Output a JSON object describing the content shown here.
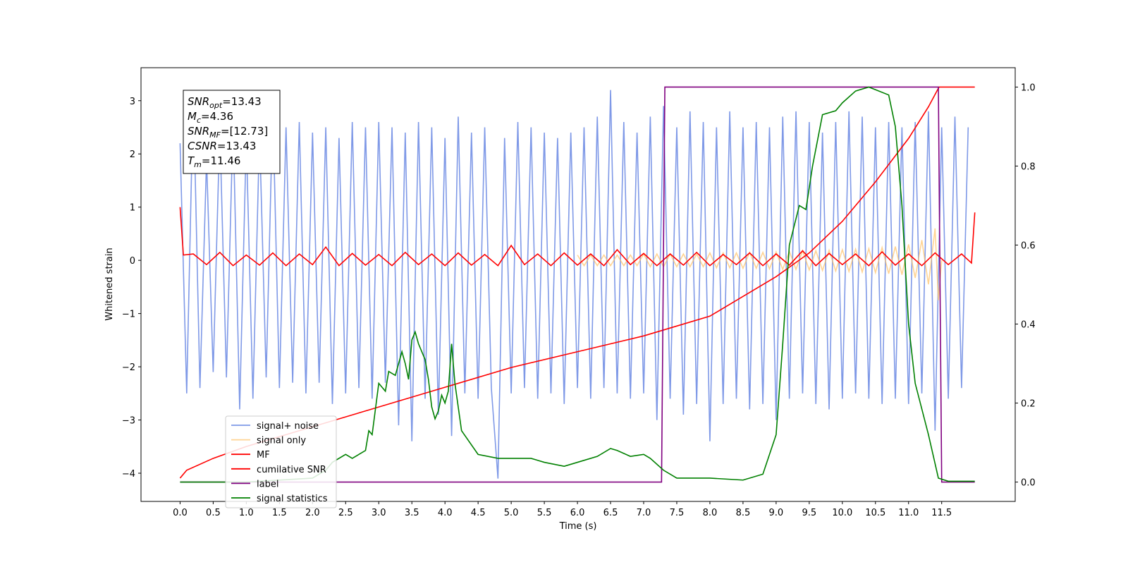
{
  "chart_data": {
    "type": "line",
    "xlabel": "Time (s)",
    "ylabel": "Whitened strain",
    "xlim": [
      -0.59,
      12.61
    ],
    "ylim": [
      -4.53,
      3.62
    ],
    "y2lim": [
      -0.049,
      1.049
    ],
    "xticks": [
      {
        "value": 0,
        "label": "0.0"
      },
      0.5,
      {
        "value": 1,
        "label": "1.0"
      },
      1.5,
      {
        "value": 2,
        "label": "2.0"
      },
      2.5,
      {
        "value": 3,
        "label": "3.0"
      },
      3.5,
      {
        "value": 4,
        "label": "4.0"
      },
      4.5,
      {
        "value": 5,
        "label": "5.0"
      },
      5.5,
      {
        "value": 6,
        "label": "6.0"
      },
      6.5,
      {
        "value": 7,
        "label": "7.0"
      },
      7.5,
      {
        "value": 8,
        "label": "8.0"
      },
      8.5,
      {
        "value": 9,
        "label": "9.0"
      },
      9.5,
      {
        "value": 10,
        "label": "10.0"
      },
      10.5,
      {
        "value": 11,
        "label": "11.0"
      },
      11.5
    ],
    "yticks": [
      {
        "value": -4,
        "label": "−4"
      },
      {
        "value": -3,
        "label": "−3"
      },
      {
        "value": -2,
        "label": "−2"
      },
      {
        "value": -1,
        "label": "−1"
      },
      0,
      1,
      2,
      3
    ],
    "y2ticks": [
      {
        "value": 0,
        "label": "0.0"
      },
      0.2,
      0.4,
      0.6,
      0.8,
      {
        "value": 1,
        "label": "1.0"
      }
    ],
    "annotation": [
      {
        "base": "SNR",
        "sub": "opt",
        "rest": "=13.43"
      },
      {
        "base": "M",
        "sub": "c",
        "rest": "=4.36"
      },
      {
        "base": "SNR",
        "sub": "MF",
        "rest": "=[12.73]"
      },
      {
        "base": "CSNR",
        "rest": "=13.43"
      },
      {
        "base": "T",
        "sub": "m",
        "rest": "=11.46"
      }
    ],
    "series": [
      {
        "name": "signal+ noise",
        "color": "#7893e6",
        "axis": "y",
        "x": [
          0.0,
          0.1,
          0.2,
          0.3,
          0.4,
          0.5,
          0.6,
          0.7,
          0.8,
          0.9,
          1.0,
          1.1,
          1.2,
          1.3,
          1.4,
          1.5,
          1.6,
          1.7,
          1.8,
          1.9,
          2.0,
          2.1,
          2.2,
          2.3,
          2.4,
          2.5,
          2.6,
          2.7,
          2.8,
          2.9,
          3.0,
          3.1,
          3.2,
          3.3,
          3.4,
          3.5,
          3.6,
          3.7,
          3.8,
          3.9,
          4.0,
          4.1,
          4.2,
          4.3,
          4.4,
          4.5,
          4.6,
          4.7,
          4.8,
          4.9,
          5.0,
          5.1,
          5.2,
          5.3,
          5.4,
          5.5,
          5.6,
          5.7,
          5.8,
          5.9,
          6.0,
          6.1,
          6.2,
          6.3,
          6.4,
          6.5,
          6.6,
          6.7,
          6.8,
          6.9,
          7.0,
          7.1,
          7.2,
          7.3,
          7.4,
          7.5,
          7.6,
          7.7,
          7.8,
          7.9,
          8.0,
          8.1,
          8.2,
          8.3,
          8.4,
          8.5,
          8.6,
          8.7,
          8.8,
          8.9,
          9.0,
          9.1,
          9.2,
          9.3,
          9.4,
          9.5,
          9.6,
          9.7,
          9.8,
          9.9,
          10.0,
          10.1,
          10.2,
          10.3,
          10.4,
          10.5,
          10.6,
          10.7,
          10.8,
          10.9,
          11.0,
          11.1,
          11.2,
          11.3,
          11.4,
          11.5,
          11.6,
          11.7,
          11.8,
          11.9
        ],
        "values": [
          2.2,
          -2.5,
          3.2,
          -2.4,
          1.9,
          -2.1,
          2.5,
          -2.2,
          2.6,
          -2.8,
          2.3,
          -2.6,
          2.4,
          -2.2,
          2.9,
          -2.4,
          2.5,
          -2.3,
          2.6,
          -2.5,
          2.4,
          -2.3,
          2.5,
          -2.7,
          2.3,
          -2.5,
          2.6,
          -2.4,
          2.5,
          -2.6,
          2.6,
          -2.3,
          2.5,
          -3.1,
          2.4,
          -3.4,
          2.6,
          -2.6,
          2.5,
          -2.9,
          2.3,
          -3.3,
          2.7,
          -2.5,
          2.4,
          -2.6,
          2.5,
          -2.4,
          -4.1,
          2.3,
          -2.5,
          2.6,
          -2.4,
          2.5,
          -2.6,
          2.4,
          -2.5,
          2.3,
          -2.7,
          2.4,
          -2.4,
          2.5,
          -2.6,
          2.7,
          -2.4,
          3.2,
          -2.5,
          2.6,
          -2.6,
          2.4,
          -2.5,
          2.7,
          -3.0,
          2.9,
          -2.6,
          2.5,
          -2.9,
          2.8,
          -2.7,
          2.6,
          -3.4,
          2.5,
          -2.7,
          2.8,
          -2.6,
          2.5,
          -2.8,
          2.6,
          -2.7,
          2.5,
          -3.0,
          2.7,
          -2.6,
          2.8,
          -2.5,
          2.6,
          -2.7,
          2.4,
          -2.8,
          2.6,
          -2.6,
          2.8,
          -2.5,
          2.7,
          -2.6,
          2.5,
          -2.7,
          2.6,
          -2.6,
          2.5,
          -2.7,
          2.6,
          -2.5,
          2.8,
          -3.2,
          2.5,
          -2.6,
          2.7,
          -2.4,
          2.5
        ]
      },
      {
        "name": "signal only",
        "color": "#ffc266",
        "axis": "y",
        "x": [
          6.0,
          6.1,
          6.2,
          6.3,
          6.4,
          6.5,
          6.6,
          6.7,
          6.8,
          6.9,
          7.0,
          7.1,
          7.2,
          7.3,
          7.4,
          7.5,
          7.6,
          7.7,
          7.8,
          7.9,
          8.0,
          8.1,
          8.2,
          8.3,
          8.4,
          8.5,
          8.6,
          8.7,
          8.8,
          8.9,
          9.0,
          9.1,
          9.2,
          9.3,
          9.4,
          9.5,
          9.6,
          9.7,
          9.8,
          9.9,
          10.0,
          10.1,
          10.2,
          10.3,
          10.4,
          10.5,
          10.6,
          10.7,
          10.8,
          10.9,
          11.0,
          11.1,
          11.2,
          11.3,
          11.4,
          11.45,
          11.5
        ],
        "values": [
          0.1,
          -0.1,
          0.1,
          -0.1,
          0.1,
          -0.1,
          0.1,
          -0.1,
          0.1,
          -0.1,
          0.12,
          -0.12,
          0.12,
          -0.12,
          0.12,
          -0.12,
          0.12,
          -0.12,
          0.12,
          -0.12,
          0.14,
          -0.14,
          0.14,
          -0.14,
          0.14,
          -0.15,
          0.15,
          -0.15,
          0.15,
          -0.16,
          0.16,
          -0.17,
          0.17,
          -0.17,
          0.18,
          -0.18,
          0.18,
          -0.19,
          0.19,
          -0.2,
          0.2,
          -0.21,
          0.21,
          -0.22,
          0.22,
          -0.23,
          0.24,
          -0.25,
          0.26,
          -0.27,
          0.3,
          -0.33,
          0.38,
          -0.45,
          0.6,
          -0.75,
          0
        ]
      },
      {
        "name": "MF",
        "color": "#ff0000",
        "axis": "y",
        "x": [
          0,
          0.05,
          0.2,
          0.4,
          0.6,
          0.8,
          1.0,
          1.2,
          1.4,
          1.6,
          1.8,
          2.0,
          2.2,
          2.4,
          2.6,
          2.8,
          3.0,
          3.2,
          3.4,
          3.6,
          3.8,
          4.0,
          4.2,
          4.4,
          4.6,
          4.8,
          5.0,
          5.2,
          5.4,
          5.6,
          5.8,
          6.0,
          6.2,
          6.4,
          6.6,
          6.8,
          7.0,
          7.2,
          7.4,
          7.6,
          7.8,
          8.0,
          8.2,
          8.4,
          8.6,
          8.8,
          9.0,
          9.2,
          9.4,
          9.6,
          9.8,
          10.0,
          10.2,
          10.4,
          10.6,
          10.8,
          11.0,
          11.2,
          11.4,
          11.6,
          11.8,
          11.95,
          12.0
        ],
        "values": [
          1.0,
          0.1,
          0.12,
          -0.08,
          0.15,
          -0.1,
          0.1,
          -0.09,
          0.14,
          -0.1,
          0.12,
          -0.08,
          0.25,
          -0.1,
          0.13,
          -0.09,
          0.11,
          -0.1,
          0.15,
          -0.08,
          0.12,
          -0.1,
          0.14,
          -0.09,
          0.11,
          -0.1,
          0.28,
          -0.08,
          0.12,
          -0.1,
          0.14,
          -0.09,
          0.12,
          -0.1,
          0.2,
          -0.08,
          0.13,
          -0.1,
          0.12,
          -0.09,
          0.15,
          -0.1,
          0.11,
          -0.08,
          0.14,
          -0.1,
          0.12,
          -0.09,
          0.18,
          -0.1,
          0.13,
          -0.08,
          0.12,
          -0.1,
          0.16,
          -0.09,
          0.12,
          -0.1,
          0.14,
          -0.08,
          0.12,
          -0.05,
          0.9
        ]
      },
      {
        "name": "cumilative SNR",
        "color": "#ff0000",
        "axis": "y2",
        "x": [
          0,
          0.1,
          0.5,
          1,
          2,
          3,
          4,
          5,
          6,
          7,
          7.5,
          8,
          8.5,
          9,
          9.5,
          10,
          10.5,
          11,
          11.3,
          11.46,
          12
        ],
        "values": [
          0.01,
          0.03,
          0.06,
          0.09,
          0.14,
          0.19,
          0.24,
          0.29,
          0.33,
          0.37,
          0.395,
          0.42,
          0.47,
          0.52,
          0.58,
          0.66,
          0.76,
          0.87,
          0.95,
          1.0,
          1.0
        ]
      },
      {
        "name": "label",
        "color": "#800080",
        "axis": "y2",
        "x": [
          0,
          7.27,
          7.32,
          11.45,
          11.5,
          12.0
        ],
        "values": [
          0,
          0,
          1.0,
          1.0,
          0,
          0
        ]
      },
      {
        "name": "signal statistics",
        "color": "#008000",
        "axis": "y2",
        "x": [
          0,
          1,
          2,
          2.2,
          2.3,
          2.5,
          2.6,
          2.8,
          2.85,
          2.9,
          3.0,
          3.1,
          3.15,
          3.25,
          3.3,
          3.35,
          3.4,
          3.45,
          3.5,
          3.55,
          3.6,
          3.7,
          3.75,
          3.8,
          3.85,
          3.9,
          3.95,
          4.0,
          4.05,
          4.1,
          4.15,
          4.25,
          4.5,
          4.8,
          5.0,
          5.3,
          5.5,
          5.8,
          6.0,
          6.3,
          6.5,
          6.6,
          6.8,
          7.0,
          7.1,
          7.3,
          7.5,
          8.0,
          8.5,
          8.8,
          9.0,
          9.1,
          9.2,
          9.35,
          9.45,
          9.55,
          9.7,
          9.9,
          10.0,
          10.2,
          10.4,
          10.7,
          10.8,
          10.9,
          11.0,
          11.1,
          11.3,
          11.45,
          11.6,
          12
        ],
        "values": [
          0,
          0,
          0.01,
          0.03,
          0.05,
          0.07,
          0.06,
          0.08,
          0.13,
          0.12,
          0.25,
          0.23,
          0.28,
          0.27,
          0.3,
          0.33,
          0.3,
          0.26,
          0.36,
          0.38,
          0.35,
          0.31,
          0.26,
          0.19,
          0.16,
          0.18,
          0.22,
          0.2,
          0.23,
          0.35,
          0.25,
          0.13,
          0.07,
          0.06,
          0.06,
          0.06,
          0.05,
          0.04,
          0.05,
          0.065,
          0.085,
          0.08,
          0.065,
          0.07,
          0.06,
          0.03,
          0.01,
          0.01,
          0.005,
          0.02,
          0.12,
          0.35,
          0.6,
          0.7,
          0.69,
          0.8,
          0.93,
          0.94,
          0.96,
          0.99,
          1.0,
          0.98,
          0.9,
          0.7,
          0.4,
          0.25,
          0.12,
          0.01,
          0.002,
          0.002
        ]
      }
    ]
  }
}
